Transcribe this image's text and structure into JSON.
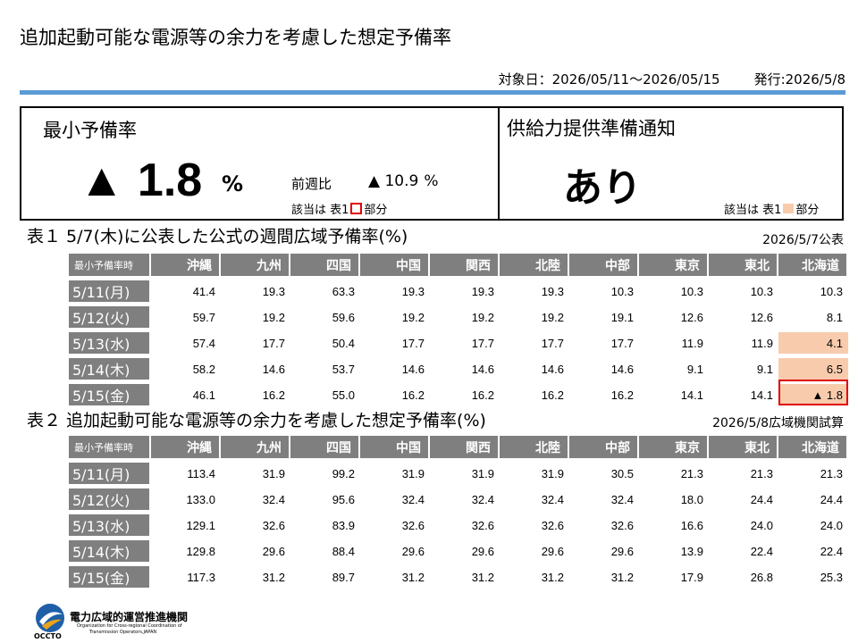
{
  "header": {
    "title": "追加起動可能な電源等の余力を考慮した想定予備率",
    "period": "対象日：2026/05/11～2026/05/15",
    "issued": "発行:2026/5/8"
  },
  "summary": {
    "min_label": "最小予備率",
    "min_value": "▲ 1.8",
    "min_unit": "%",
    "wow_label": "前週比",
    "wow_value": "▲ 10.9",
    "wow_unit": "%",
    "note_prefix": "該当は 表1",
    "note_suffix": "部分",
    "supply_label": "供給力提供準備通知",
    "supply_value": "あり",
    "colors": {
      "red_mark": "#e00000",
      "pink_mark": "#f8cbad"
    }
  },
  "table1": {
    "title": "表１ 5/7(木)に公表した公式の週間広域予備率(%)",
    "date": "2026/5/7公表",
    "corner": "最小予備率時",
    "columns": [
      "沖縄",
      "九州",
      "四国",
      "中国",
      "関西",
      "北陸",
      "中部",
      "東京",
      "東北",
      "北海道"
    ],
    "rows": [
      {
        "label": "5/11(月)",
        "values": [
          "41.4",
          "19.3",
          "63.3",
          "19.3",
          "19.3",
          "19.3",
          "10.3",
          "10.3",
          "10.3",
          "10.3"
        ]
      },
      {
        "label": "5/12(火)",
        "values": [
          "59.7",
          "19.2",
          "59.6",
          "19.2",
          "19.2",
          "19.2",
          "19.1",
          "12.6",
          "12.6",
          "8.1"
        ]
      },
      {
        "label": "5/13(水)",
        "values": [
          "57.4",
          "17.7",
          "50.4",
          "17.7",
          "17.7",
          "17.7",
          "17.7",
          "11.9",
          "11.9",
          "4.1"
        ]
      },
      {
        "label": "5/14(木)",
        "values": [
          "58.2",
          "14.6",
          "53.7",
          "14.6",
          "14.6",
          "14.6",
          "14.6",
          "9.1",
          "9.1",
          "6.5"
        ]
      },
      {
        "label": "5/15(金)",
        "values": [
          "46.1",
          "16.2",
          "55.0",
          "16.2",
          "16.2",
          "16.2",
          "16.2",
          "14.1",
          "14.1",
          "▲ 1.8"
        ]
      }
    ]
  },
  "table2": {
    "title": "表２ 追加起動可能な電源等の余力を考慮した想定予備率(%)",
    "date": "2026/5/8広域機関試算",
    "corner": "最小予備率時",
    "columns": [
      "沖縄",
      "九州",
      "四国",
      "中国",
      "関西",
      "北陸",
      "中部",
      "東京",
      "東北",
      "北海道"
    ],
    "rows": [
      {
        "label": "5/11(月)",
        "values": [
          "113.4",
          "31.9",
          "99.2",
          "31.9",
          "31.9",
          "31.9",
          "30.5",
          "21.3",
          "21.3",
          "21.3"
        ]
      },
      {
        "label": "5/12(火)",
        "values": [
          "133.0",
          "32.4",
          "95.6",
          "32.4",
          "32.4",
          "32.4",
          "32.4",
          "18.0",
          "24.4",
          "24.4"
        ]
      },
      {
        "label": "5/13(水)",
        "values": [
          "129.1",
          "32.6",
          "83.9",
          "32.6",
          "32.6",
          "32.6",
          "32.6",
          "16.6",
          "24.0",
          "24.0"
        ]
      },
      {
        "label": "5/14(木)",
        "values": [
          "129.8",
          "29.6",
          "88.4",
          "29.6",
          "29.6",
          "29.6",
          "29.6",
          "13.9",
          "22.4",
          "22.4"
        ]
      },
      {
        "label": "5/15(金)",
        "values": [
          "117.3",
          "31.2",
          "89.7",
          "31.2",
          "31.2",
          "31.2",
          "31.2",
          "17.9",
          "26.8",
          "25.3"
        ]
      }
    ]
  },
  "logo": {
    "jp": "電力広域的運営推進機関",
    "en1": "Organization for Cross-regional Coordination of",
    "en2": "Transmission Operators,JAPAN",
    "abbr": "OCCTO",
    "icon": "occto-logo-icon"
  }
}
